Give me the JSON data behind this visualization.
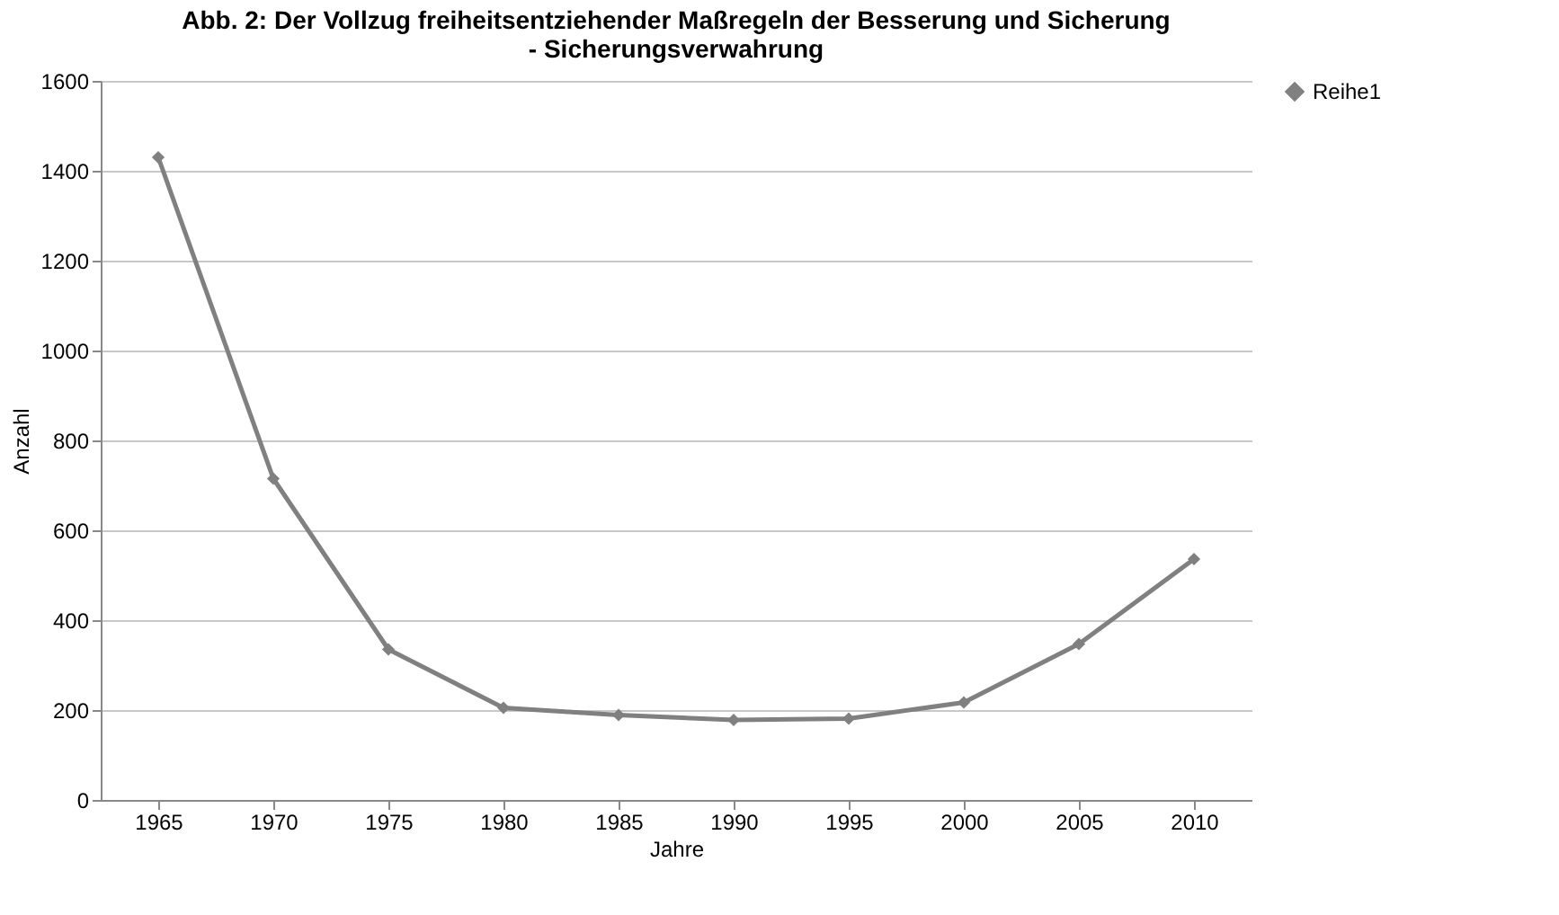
{
  "chart_data": {
    "type": "line",
    "title": "Abb. 2: Der Vollzug freiheitsentziehender Maßregeln der Besserung und Sicherung - Sicherungsverwahrung",
    "xlabel": "Jahre",
    "ylabel": "Anzahl",
    "categories": [
      "1965",
      "1970",
      "1975",
      "1980",
      "1985",
      "1990",
      "1995",
      "2000",
      "2005",
      "2010"
    ],
    "series": [
      {
        "name": "Reihe1",
        "color": "#808080",
        "values": [
          1430,
          715,
          335,
          205,
          189,
          178,
          181,
          217,
          347,
          536
        ]
      }
    ],
    "ylim": [
      0,
      1600
    ],
    "yticks": [
      0,
      200,
      400,
      600,
      800,
      1000,
      1200,
      1400,
      1600
    ],
    "grid": "y",
    "legend": "right",
    "marker": "diamond",
    "line_style": "solid"
  }
}
